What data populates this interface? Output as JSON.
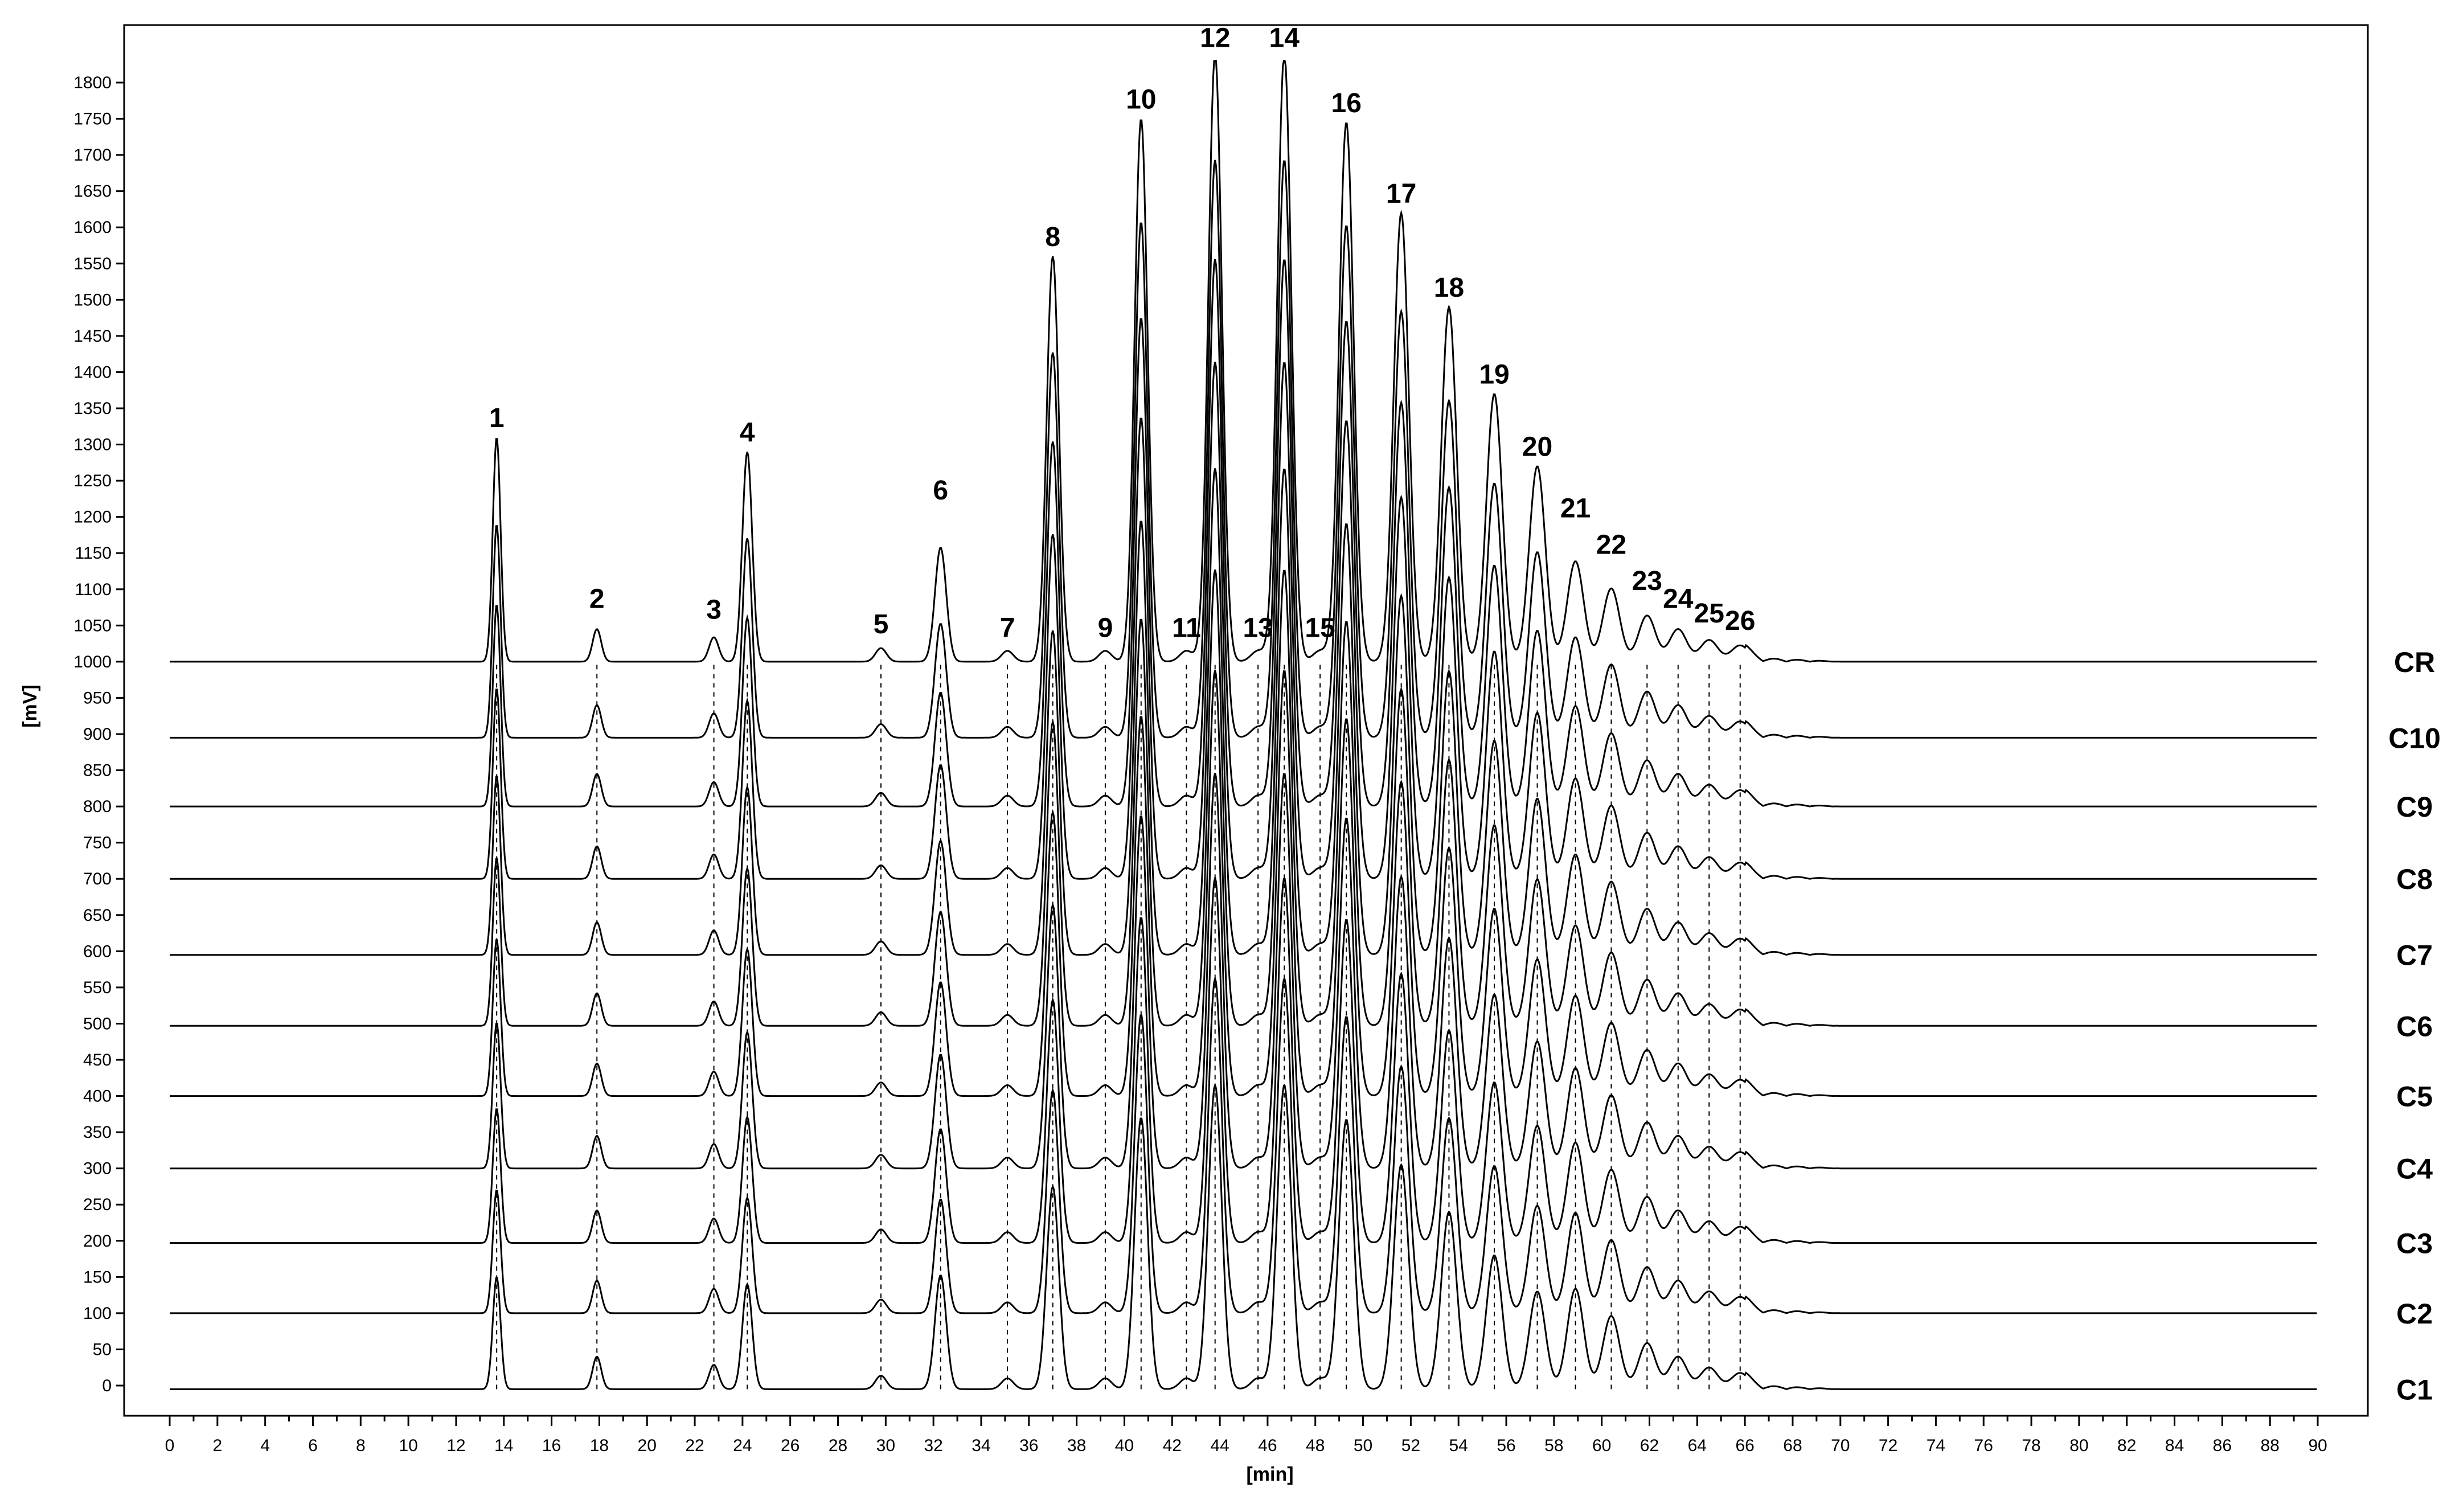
{
  "chart_data": {
    "type": "line",
    "xlabel": "[min]",
    "ylabel": "[mV]",
    "xlim": [
      0,
      90
    ],
    "ylim": [
      -30,
      1850
    ],
    "x_ticks": [
      0,
      2,
      4,
      6,
      8,
      10,
      12,
      14,
      16,
      18,
      20,
      22,
      24,
      26,
      28,
      30,
      32,
      34,
      36,
      38,
      40,
      42,
      44,
      46,
      48,
      50,
      52,
      54,
      56,
      58,
      60,
      62,
      64,
      66,
      68,
      70,
      72,
      74,
      76,
      78,
      80,
      82,
      84,
      86,
      88,
      90
    ],
    "y_ticks": [
      0,
      50,
      100,
      150,
      200,
      250,
      300,
      350,
      400,
      450,
      500,
      550,
      600,
      650,
      700,
      750,
      800,
      850,
      900,
      950,
      1000,
      1050,
      1100,
      1150,
      1200,
      1250,
      1300,
      1350,
      1400,
      1450,
      1500,
      1550,
      1600,
      1650,
      1700,
      1750,
      1800
    ],
    "grid": false,
    "legend": "none",
    "trace_start": 0,
    "trace_end": 90,
    "series": [
      {
        "name": "CR",
        "baseline": 1000
      },
      {
        "name": "C10",
        "baseline": 895
      },
      {
        "name": "C9",
        "baseline": 800
      },
      {
        "name": "C8",
        "baseline": 700
      },
      {
        "name": "C7",
        "baseline": 595
      },
      {
        "name": "C6",
        "baseline": 497
      },
      {
        "name": "C5",
        "baseline": 400
      },
      {
        "name": "C4",
        "baseline": 300
      },
      {
        "name": "C3",
        "baseline": 197
      },
      {
        "name": "C2",
        "baseline": 100
      },
      {
        "name": "C1",
        "baseline": -5
      }
    ],
    "peaks": [
      {
        "label": "1",
        "rt": 13.7,
        "top": 1310
      },
      {
        "label": "2",
        "rt": 17.9,
        "top": 1060
      },
      {
        "label": "3",
        "rt": 22.8,
        "top": 1045
      },
      {
        "label": "4",
        "rt": 24.2,
        "top": 1290
      },
      {
        "label": "5",
        "rt": 29.8,
        "top": 1025
      },
      {
        "label": "6",
        "rt": 32.3,
        "top": 1210
      },
      {
        "label": "7",
        "rt": 35.1,
        "top": 1020
      },
      {
        "label": "8",
        "rt": 37.0,
        "top": 1560
      },
      {
        "label": "9",
        "rt": 39.2,
        "top": 1020
      },
      {
        "label": "10",
        "rt": 40.7,
        "top": 1750
      },
      {
        "label": "11",
        "rt": 42.6,
        "top": 1020
      },
      {
        "label": "12",
        "rt": 43.8,
        "top": 1840
      },
      {
        "label": "13",
        "rt": 45.6,
        "top": 1020
      },
      {
        "label": "14",
        "rt": 46.7,
        "top": 1840
      },
      {
        "label": "15",
        "rt": 48.2,
        "top": 1020
      },
      {
        "label": "16",
        "rt": 49.3,
        "top": 1745
      },
      {
        "label": "17",
        "rt": 51.6,
        "top": 1620
      },
      {
        "label": "18",
        "rt": 53.6,
        "top": 1490
      },
      {
        "label": "19",
        "rt": 55.5,
        "top": 1370
      },
      {
        "label": "20",
        "rt": 57.3,
        "top": 1270
      },
      {
        "label": "21",
        "rt": 58.9,
        "top": 1185
      },
      {
        "label": "22",
        "rt": 60.4,
        "top": 1135
      },
      {
        "label": "23",
        "rt": 61.9,
        "top": 1085
      },
      {
        "label": "24",
        "rt": 63.2,
        "top": 1060
      },
      {
        "label": "25",
        "rt": 64.5,
        "top": 1040
      },
      {
        "label": "26",
        "rt": 65.8,
        "top": 1030
      }
    ]
  }
}
